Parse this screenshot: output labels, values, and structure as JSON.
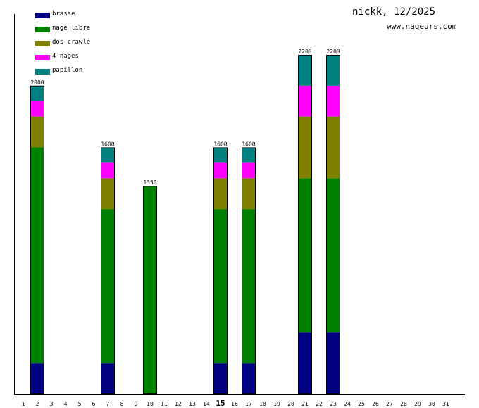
{
  "header": {
    "title": "nickk, 12/2025",
    "subtitle": "www.nageurs.com"
  },
  "legend": [
    {
      "label": "brasse",
      "color": "#000080"
    },
    {
      "label": "nage libre",
      "color": "#008000"
    },
    {
      "label": "dos crawlé",
      "color": "#808000"
    },
    {
      "label": "4 nages",
      "color": "#ff00ff"
    },
    {
      "label": "papillon",
      "color": "#008080"
    }
  ],
  "chart_data": {
    "type": "bar",
    "stacked": true,
    "title": "nickk, 12/2025",
    "xlabel": "",
    "ylabel": "",
    "ylim": [
      0,
      2200
    ],
    "highlight_category": "15",
    "categories": [
      "1",
      "2",
      "3",
      "4",
      "5",
      "6",
      "7",
      "8",
      "9",
      "10",
      "11",
      "12",
      "13",
      "14",
      "15",
      "16",
      "17",
      "18",
      "19",
      "20",
      "21",
      "22",
      "23",
      "24",
      "25",
      "26",
      "27",
      "28",
      "29",
      "30",
      "31"
    ],
    "totals": [
      0,
      2000,
      0,
      0,
      0,
      0,
      1600,
      0,
      0,
      1350,
      0,
      0,
      0,
      0,
      1600,
      0,
      1600,
      0,
      0,
      0,
      2200,
      0,
      2200,
      0,
      0,
      0,
      0,
      0,
      0,
      0,
      0
    ],
    "series": [
      {
        "name": "brasse",
        "color": "#000080",
        "values": [
          0,
          200,
          0,
          0,
          0,
          0,
          200,
          0,
          0,
          0,
          0,
          0,
          0,
          0,
          200,
          0,
          200,
          0,
          0,
          0,
          400,
          0,
          400,
          0,
          0,
          0,
          0,
          0,
          0,
          0,
          0
        ]
      },
      {
        "name": "nage libre",
        "color": "#008000",
        "values": [
          0,
          1400,
          0,
          0,
          0,
          0,
          1000,
          0,
          0,
          1350,
          0,
          0,
          0,
          0,
          1000,
          0,
          1000,
          0,
          0,
          0,
          1000,
          0,
          1000,
          0,
          0,
          0,
          0,
          0,
          0,
          0,
          0
        ]
      },
      {
        "name": "dos crawlé",
        "color": "#808000",
        "values": [
          0,
          200,
          0,
          0,
          0,
          0,
          200,
          0,
          0,
          0,
          0,
          0,
          0,
          0,
          200,
          0,
          200,
          0,
          0,
          0,
          400,
          0,
          400,
          0,
          0,
          0,
          0,
          0,
          0,
          0,
          0
        ]
      },
      {
        "name": "4 nages",
        "color": "#ff00ff",
        "values": [
          0,
          100,
          0,
          0,
          0,
          0,
          100,
          0,
          0,
          0,
          0,
          0,
          0,
          0,
          100,
          0,
          100,
          0,
          0,
          0,
          200,
          0,
          200,
          0,
          0,
          0,
          0,
          0,
          0,
          0,
          0
        ]
      },
      {
        "name": "papillon",
        "color": "#008080",
        "values": [
          0,
          100,
          0,
          0,
          0,
          0,
          100,
          0,
          0,
          0,
          0,
          0,
          0,
          0,
          100,
          0,
          100,
          0,
          0,
          0,
          200,
          0,
          200,
          0,
          0,
          0,
          0,
          0,
          0,
          0,
          0
        ]
      }
    ]
  }
}
